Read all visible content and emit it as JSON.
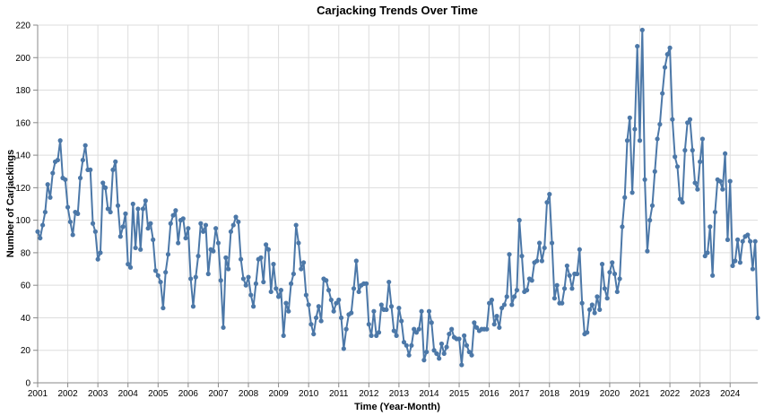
{
  "chart_data": {
    "type": "line",
    "title": "Carjacking Trends Over Time",
    "xlabel": "Time (Year-Month)",
    "ylabel": "Number of Carjackings",
    "ylim": [
      0,
      220
    ],
    "yticks": [
      0,
      20,
      40,
      60,
      80,
      100,
      120,
      140,
      160,
      180,
      200,
      220
    ],
    "xlim": [
      "2001-01",
      "2024-12"
    ],
    "xticks": [
      "2001",
      "2002",
      "2003",
      "2004",
      "2005",
      "2006",
      "2007",
      "2008",
      "2009",
      "2010",
      "2011",
      "2012",
      "2013",
      "2014",
      "2015",
      "2016",
      "2017",
      "2018",
      "2019",
      "2020",
      "2021",
      "2022",
      "2023",
      "2024"
    ],
    "grid": true,
    "legend": "none",
    "color": "#4c78a8",
    "x": [
      "2001-01",
      "2001-02",
      "2001-03",
      "2001-04",
      "2001-05",
      "2001-06",
      "2001-07",
      "2001-08",
      "2001-09",
      "2001-10",
      "2001-11",
      "2001-12",
      "2002-01",
      "2002-02",
      "2002-03",
      "2002-04",
      "2002-05",
      "2002-06",
      "2002-07",
      "2002-08",
      "2002-09",
      "2002-10",
      "2002-11",
      "2002-12",
      "2003-01",
      "2003-02",
      "2003-03",
      "2003-04",
      "2003-05",
      "2003-06",
      "2003-07",
      "2003-08",
      "2003-09",
      "2003-10",
      "2003-11",
      "2003-12",
      "2004-01",
      "2004-02",
      "2004-03",
      "2004-04",
      "2004-05",
      "2004-06",
      "2004-07",
      "2004-08",
      "2004-09",
      "2004-10",
      "2004-11",
      "2004-12",
      "2005-01",
      "2005-02",
      "2005-03",
      "2005-04",
      "2005-05",
      "2005-06",
      "2005-07",
      "2005-08",
      "2005-09",
      "2005-10",
      "2005-11",
      "2005-12",
      "2006-01",
      "2006-02",
      "2006-03",
      "2006-04",
      "2006-05",
      "2006-06",
      "2006-07",
      "2006-08",
      "2006-09",
      "2006-10",
      "2006-11",
      "2006-12",
      "2007-01",
      "2007-02",
      "2007-03",
      "2007-04",
      "2007-05",
      "2007-06",
      "2007-07",
      "2007-08",
      "2007-09",
      "2007-10",
      "2007-11",
      "2007-12",
      "2008-01",
      "2008-02",
      "2008-03",
      "2008-04",
      "2008-05",
      "2008-06",
      "2008-07",
      "2008-08",
      "2008-09",
      "2008-10",
      "2008-11",
      "2008-12",
      "2009-01",
      "2009-02",
      "2009-03",
      "2009-04",
      "2009-05",
      "2009-06",
      "2009-07",
      "2009-08",
      "2009-09",
      "2009-10",
      "2009-11",
      "2009-12",
      "2010-01",
      "2010-02",
      "2010-03",
      "2010-04",
      "2010-05",
      "2010-06",
      "2010-07",
      "2010-08",
      "2010-09",
      "2010-10",
      "2010-11",
      "2010-12",
      "2011-01",
      "2011-02",
      "2011-03",
      "2011-04",
      "2011-05",
      "2011-06",
      "2011-07",
      "2011-08",
      "2011-09",
      "2011-10",
      "2011-11",
      "2011-12",
      "2012-01",
      "2012-02",
      "2012-03",
      "2012-04",
      "2012-05",
      "2012-06",
      "2012-07",
      "2012-08",
      "2012-09",
      "2012-10",
      "2012-11",
      "2012-12",
      "2013-01",
      "2013-02",
      "2013-03",
      "2013-04",
      "2013-05",
      "2013-06",
      "2013-07",
      "2013-08",
      "2013-09",
      "2013-10",
      "2013-11",
      "2013-12",
      "2014-01",
      "2014-02",
      "2014-03",
      "2014-04",
      "2014-05",
      "2014-06",
      "2014-07",
      "2014-08",
      "2014-09",
      "2014-10",
      "2014-11",
      "2014-12",
      "2015-01",
      "2015-02",
      "2015-03",
      "2015-04",
      "2015-05",
      "2015-06",
      "2015-07",
      "2015-08",
      "2015-09",
      "2015-10",
      "2015-11",
      "2015-12",
      "2016-01",
      "2016-02",
      "2016-03",
      "2016-04",
      "2016-05",
      "2016-06",
      "2016-07",
      "2016-08",
      "2016-09",
      "2016-10",
      "2016-11",
      "2016-12",
      "2017-01",
      "2017-02",
      "2017-03",
      "2017-04",
      "2017-05",
      "2017-06",
      "2017-07",
      "2017-08",
      "2017-09",
      "2017-10",
      "2017-11",
      "2017-12",
      "2018-01",
      "2018-02",
      "2018-03",
      "2018-04",
      "2018-05",
      "2018-06",
      "2018-07",
      "2018-08",
      "2018-09",
      "2018-10",
      "2018-11",
      "2018-12",
      "2019-01",
      "2019-02",
      "2019-03",
      "2019-04",
      "2019-05",
      "2019-06",
      "2019-07",
      "2019-08",
      "2019-09",
      "2019-10",
      "2019-11",
      "2019-12",
      "2020-01",
      "2020-02",
      "2020-03",
      "2020-04",
      "2020-05",
      "2020-06",
      "2020-07",
      "2020-08",
      "2020-09",
      "2020-10",
      "2020-11",
      "2020-12",
      "2021-01",
      "2021-02",
      "2021-03",
      "2021-04",
      "2021-05",
      "2021-06",
      "2021-07",
      "2021-08",
      "2021-09",
      "2021-10",
      "2021-11",
      "2021-12",
      "2022-01",
      "2022-02",
      "2022-03",
      "2022-04",
      "2022-05",
      "2022-06",
      "2022-07",
      "2022-08",
      "2022-09",
      "2022-10",
      "2022-11",
      "2022-12",
      "2023-01",
      "2023-02",
      "2023-03",
      "2023-04",
      "2023-05",
      "2023-06",
      "2023-07",
      "2023-08",
      "2023-09",
      "2023-10",
      "2023-11",
      "2023-12",
      "2024-01",
      "2024-02",
      "2024-03",
      "2024-04",
      "2024-05",
      "2024-06",
      "2024-07",
      "2024-08",
      "2024-09",
      "2024-10",
      "2024-11",
      "2024-12"
    ],
    "values": [
      93,
      89,
      97,
      105,
      122,
      114,
      129,
      136,
      137,
      149,
      126,
      125,
      108,
      99,
      91,
      105,
      104,
      126,
      137,
      146,
      131,
      131,
      98,
      93,
      76,
      80,
      123,
      120,
      107,
      105,
      131,
      136,
      109,
      90,
      96,
      104,
      73,
      71,
      110,
      83,
      107,
      82,
      107,
      112,
      95,
      98,
      88,
      69,
      66,
      62,
      46,
      68,
      79,
      98,
      103,
      106,
      86,
      100,
      101,
      89,
      95,
      64,
      47,
      65,
      78,
      98,
      93,
      97,
      67,
      82,
      81,
      95,
      86,
      63,
      34,
      77,
      70,
      93,
      97,
      102,
      99,
      76,
      64,
      60,
      65,
      54,
      47,
      61,
      76,
      77,
      62,
      85,
      82,
      56,
      73,
      58,
      53,
      57,
      29,
      49,
      44,
      61,
      67,
      97,
      86,
      70,
      74,
      54,
      48,
      36,
      30,
      40,
      47,
      38,
      64,
      63,
      57,
      51,
      44,
      49,
      51,
      40,
      21,
      33,
      42,
      43,
      58,
      75,
      56,
      60,
      61,
      61,
      36,
      29,
      44,
      29,
      31,
      48,
      45,
      45,
      62,
      47,
      32,
      29,
      46,
      38,
      25,
      23,
      17,
      23,
      33,
      31,
      33,
      44,
      14,
      19,
      44,
      37,
      20,
      18,
      15,
      24,
      18,
      22,
      30,
      33,
      28,
      27,
      27,
      11,
      29,
      23,
      19,
      17,
      37,
      34,
      32,
      33,
      33,
      33,
      49,
      51,
      36,
      41,
      34,
      46,
      48,
      53,
      79,
      48,
      53,
      57,
      100,
      78,
      56,
      57,
      64,
      63,
      74,
      75,
      86,
      75,
      83,
      111,
      116,
      86,
      52,
      60,
      49,
      49,
      58,
      72,
      66,
      58,
      67,
      67,
      82,
      49,
      30,
      31,
      45,
      48,
      43,
      53,
      45,
      73,
      58,
      52,
      68,
      74,
      67,
      56,
      64,
      96,
      114,
      149,
      163,
      117,
      156,
      207,
      149,
      217,
      125,
      81,
      100,
      109,
      130,
      150,
      159,
      178,
      194,
      202,
      206,
      162,
      139,
      133,
      113,
      111,
      143,
      160,
      162,
      143,
      123,
      119,
      136,
      150,
      78,
      80,
      96,
      66,
      105,
      125,
      124,
      119,
      141,
      88,
      124,
      72,
      75,
      88,
      74,
      87,
      90,
      91,
      87,
      70,
      87,
      40
    ]
  }
}
